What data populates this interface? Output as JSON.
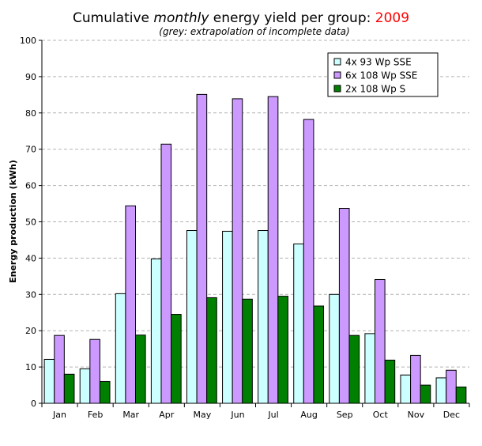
{
  "chart_data": {
    "type": "bar",
    "title": {
      "part1": "Cumulative ",
      "part2": "monthly",
      "part3": " energy yield per group: ",
      "year": "2009"
    },
    "subtitle": "(grey: extrapolation of incomplete data)",
    "xlabel": "",
    "ylabel": "Energy production (kWh)",
    "ylim": [
      0,
      100
    ],
    "yticks": [
      0,
      10,
      20,
      30,
      40,
      50,
      60,
      70,
      80,
      90,
      100
    ],
    "grid": true,
    "legend_position": "top-right",
    "categories": [
      "Jan",
      "Feb",
      "Mar",
      "Apr",
      "May",
      "Jun",
      "Jul",
      "Aug",
      "Sep",
      "Oct",
      "Nov",
      "Dec"
    ],
    "series": [
      {
        "name": "4x 93 Wp SSE",
        "color": "#ccffff",
        "values": [
          12.1,
          9.5,
          30.2,
          39.8,
          47.6,
          47.4,
          47.6,
          43.9,
          30.0,
          19.2,
          7.8,
          7.0
        ]
      },
      {
        "name": "6x 108 Wp SSE",
        "color": "#cc99ff",
        "values": [
          18.7,
          17.6,
          54.4,
          71.4,
          85.1,
          83.9,
          84.5,
          78.2,
          53.7,
          34.1,
          13.2,
          9.1
        ]
      },
      {
        "name": "2x 108 Wp S",
        "color": "#008000",
        "values": [
          8.0,
          6.0,
          18.8,
          24.5,
          29.1,
          28.7,
          29.5,
          26.8,
          18.7,
          11.9,
          5.0,
          4.5
        ]
      }
    ],
    "colors": {
      "title_accent": "#ff0000",
      "gridline": "#b3b3b3",
      "axis": "#000000",
      "bar_border": "#000000"
    }
  }
}
